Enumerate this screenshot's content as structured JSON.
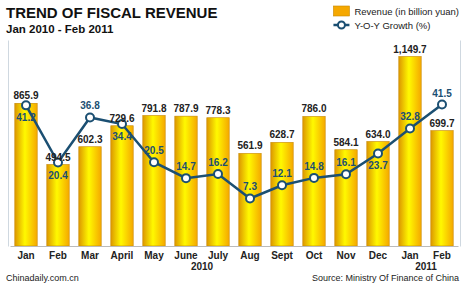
{
  "chart_data": {
    "type": "bar",
    "title": "TREND OF FISCAL REVENUE",
    "subtitle": "Jan 2010 - Feb 2011",
    "categories": [
      "Jan",
      "Feb",
      "Mar",
      "April",
      "May",
      "June",
      "July",
      "Aug",
      "Sept",
      "Oct",
      "Nov",
      "Dec",
      "Jan",
      "Feb"
    ],
    "series": [
      {
        "name": "Revenue (in billion yuan)",
        "type": "bar",
        "color": "#f5a800",
        "values": [
          865.9,
          494.5,
          602.3,
          729.6,
          791.8,
          787.9,
          778.3,
          561.9,
          628.7,
          786.0,
          584.1,
          634.0,
          1149.7,
          699.7
        ],
        "value_labels": [
          "865.9",
          "494.5",
          "602.3",
          "729.6",
          "791.8",
          "787.9",
          "778.3",
          "561.9",
          "628.7",
          "786.0",
          "584.1",
          "634.0",
          "1,149.7",
          "699.7"
        ]
      },
      {
        "name": "Y-O-Y Growth (%)",
        "type": "line",
        "axis": "y2",
        "color": "#1b4f72",
        "marker": "circle",
        "values": [
          41.2,
          20.4,
          36.8,
          34.4,
          20.5,
          14.7,
          16.2,
          7.3,
          12.1,
          14.8,
          16.1,
          23.7,
          32.8,
          41.5
        ]
      }
    ],
    "ylim": [
      0,
      1250
    ],
    "y2lim": [
      -10,
      65
    ],
    "tick_labels": false,
    "data_labels": true,
    "legend": "top-right",
    "annotations": [
      "2010",
      "2011",
      "Chinadaily.com.cn",
      "Source: Ministry Of Finance of China"
    ]
  }
}
